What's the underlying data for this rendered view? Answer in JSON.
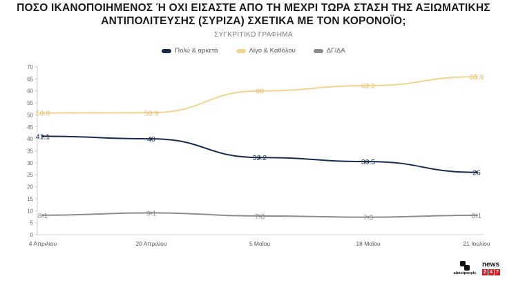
{
  "page": {
    "title_line1": "ΠΟΣΟ ΙΚΑΝΟΠΟΙΗΜΕΝΟΣ Ή ΟΧΙ ΕΙΣΑΣΤΕ ΑΠΟ ΤΗ ΜΕΧΡΙ ΤΩΡΑ ΣΤΑΣΗ ΤΗΣ ΑΞΙΩΜΑΤΙΚΗΣ",
    "title_line2": "ΑΝΤΙΠΟΛΙΤΕΥΣΗΣ (ΣΥΡΙΖΑ) ΣΧΕΤΙΚΑ ΜΕ ΤΟΝ ΚΟΡΟΝΟΪΟ;",
    "subtitle": "ΣΥΓΚΡΙΤΙΚΟ ΓΡΑΦΗΜΑ"
  },
  "logos": {
    "about_text": "aboutpeople",
    "news_text": "news",
    "news_digits": [
      "2",
      "4",
      "7"
    ]
  },
  "chart_data": {
    "type": "line",
    "title": "ΣΥΓΚΡΙΤΙΚΟ ΓΡΑΦΗΜΑ",
    "categories": [
      "4 Απριλίου",
      "20 Απριλίου",
      "5 Μαΐου",
      "18 Μαΐου",
      "21 Ιουλίου"
    ],
    "ylim": [
      0,
      70
    ],
    "yticks": [
      0,
      5,
      10,
      15,
      20,
      25,
      30,
      35,
      40,
      45,
      50,
      55,
      60,
      65,
      70
    ],
    "grid": false,
    "legend_position": "top-center",
    "series": [
      {
        "name": "Πολύ & αρκετά",
        "color": "#17294d",
        "label_color": "#17294d",
        "values": [
          41.1,
          40,
          32.2,
          30.5,
          26
        ],
        "labels": [
          "41.1",
          "40",
          "32.2",
          "30.5",
          "26"
        ]
      },
      {
        "name": "Λίγο & Καθόλου",
        "color": "#f1d48e",
        "label_color": "#e3c074",
        "values": [
          50.8,
          50.9,
          60,
          62.2,
          65.9
        ],
        "labels": [
          "50.8",
          "50.9",
          "60",
          "62.2",
          "65.9"
        ]
      },
      {
        "name": "ΔΓ/ΔΑ",
        "color": "#8c8c8c",
        "label_color": "#8c8c8c",
        "values": [
          8.1,
          9.1,
          7.8,
          7.3,
          8.1
        ],
        "labels": [
          "8.1",
          "9.1",
          "7.8",
          "7.3",
          "8.1"
        ]
      }
    ]
  }
}
